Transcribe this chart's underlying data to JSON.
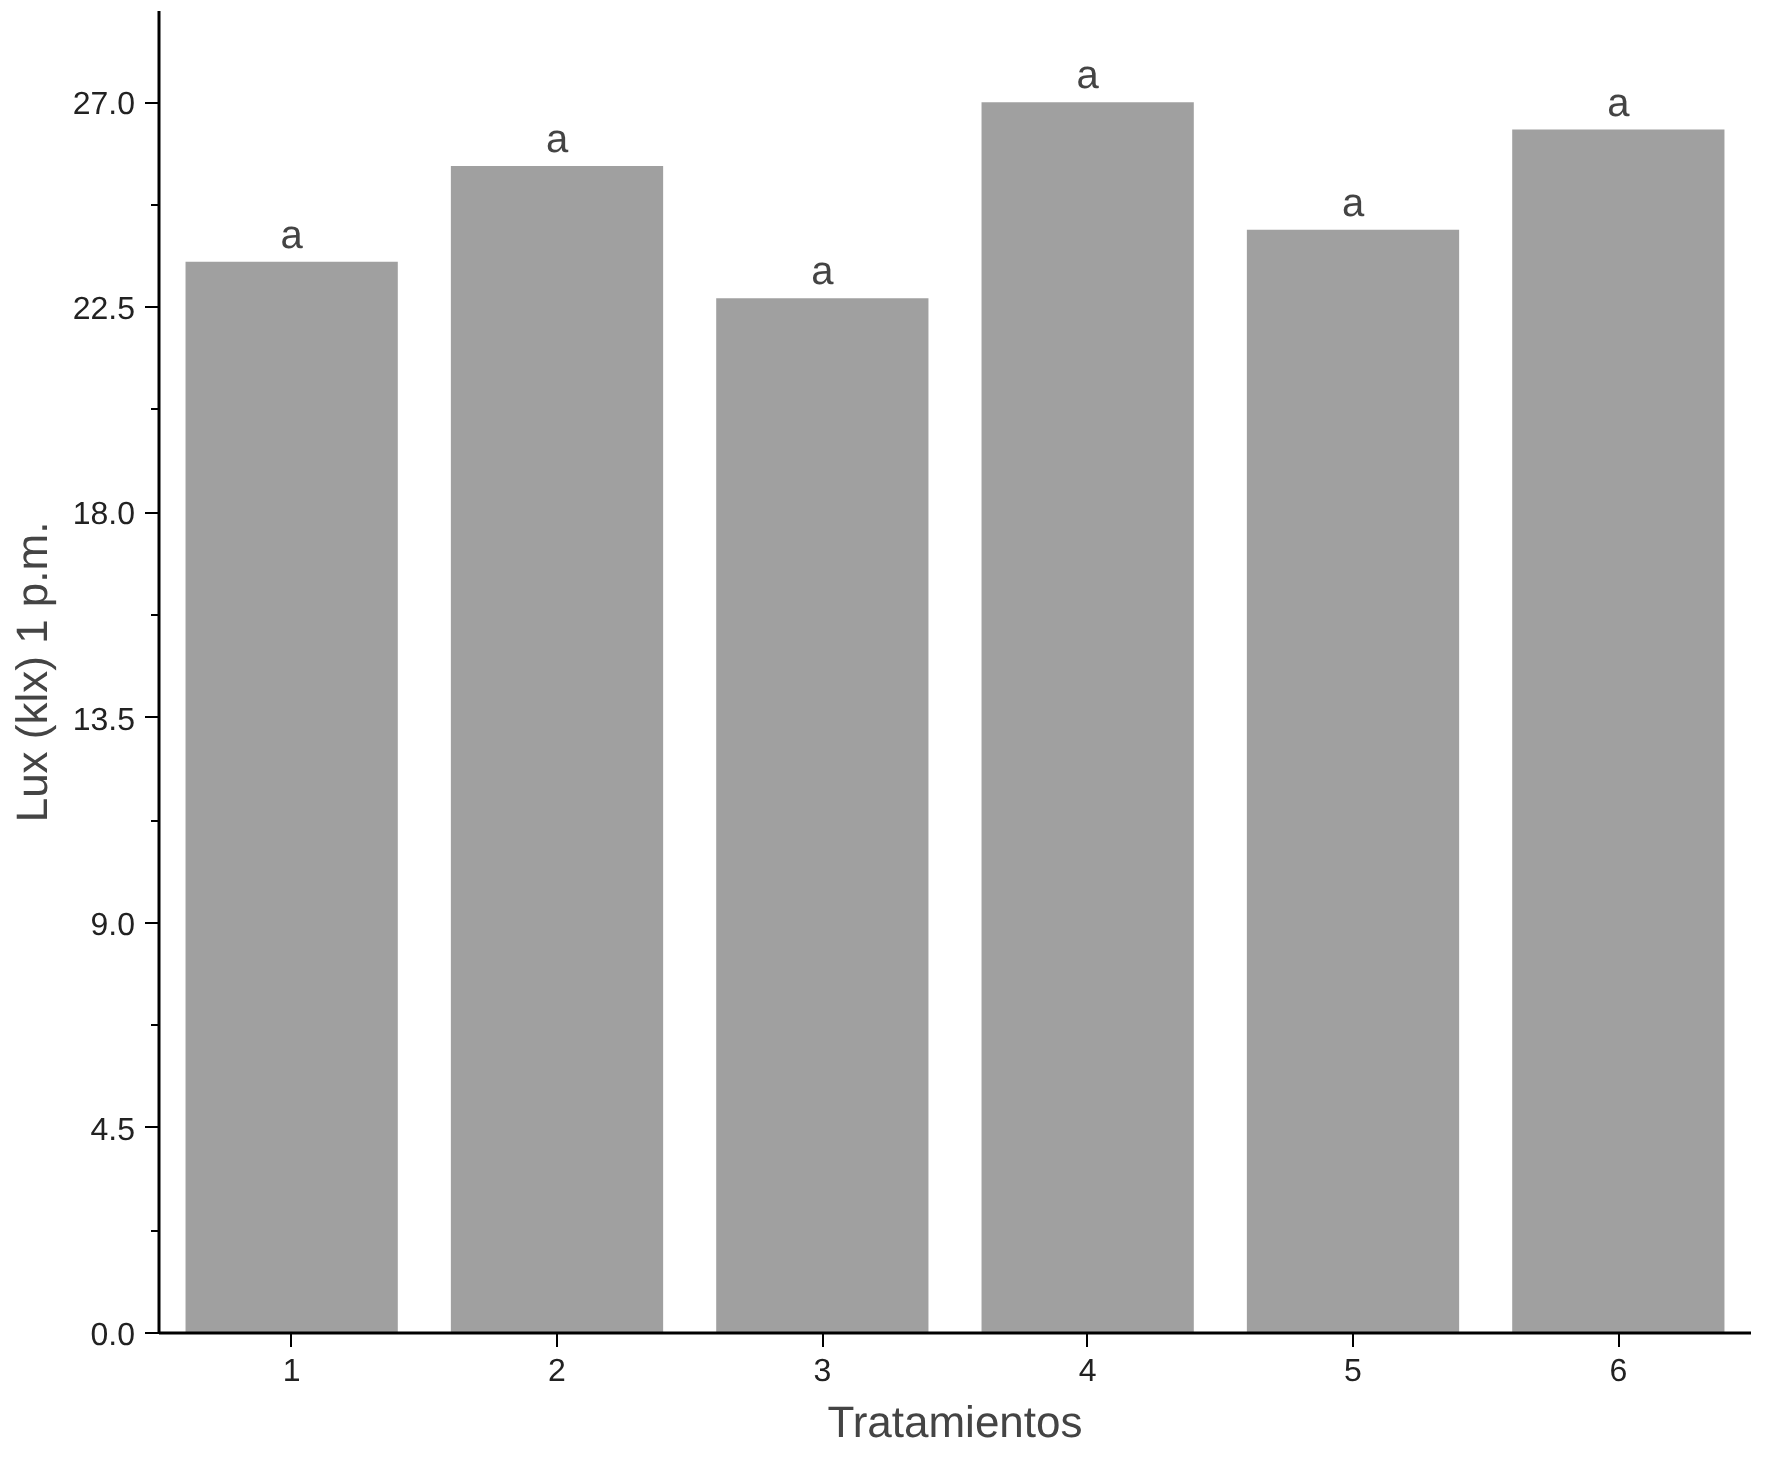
{
  "chart_data": {
    "type": "bar",
    "xlabel": "Tratamientos",
    "ylabel": "Lux (klx) 1 p.m.",
    "categories": [
      "1",
      "2",
      "3",
      "4",
      "5",
      "6"
    ],
    "values": [
      23.5,
      25.6,
      22.7,
      27.0,
      24.2,
      26.4
    ],
    "color": "#a0a0a0",
    "ylim": [
      0,
      29
    ],
    "yticks": [
      {
        "value": 0,
        "label": "0.0"
      },
      {
        "value": 4.5,
        "label": "4.5"
      },
      {
        "value": 9,
        "label": "9.0"
      },
      {
        "value": 13.5,
        "label": "13.5"
      },
      {
        "value": 18,
        "label": "18.0"
      },
      {
        "value": 22.5,
        "label": "22.5"
      },
      {
        "value": 27,
        "label": "27.0"
      }
    ],
    "grid": false,
    "annotations": [
      {
        "text": "a",
        "x": "1",
        "y": 23.5
      },
      {
        "text": "a",
        "x": "2",
        "y": 25.6
      },
      {
        "text": "a",
        "x": "3",
        "y": 22.7
      },
      {
        "text": "a",
        "x": "4",
        "y": 27.0
      },
      {
        "text": "a",
        "x": "5",
        "y": 24.2
      },
      {
        "text": "a",
        "x": "6",
        "y": 26.4
      }
    ]
  }
}
